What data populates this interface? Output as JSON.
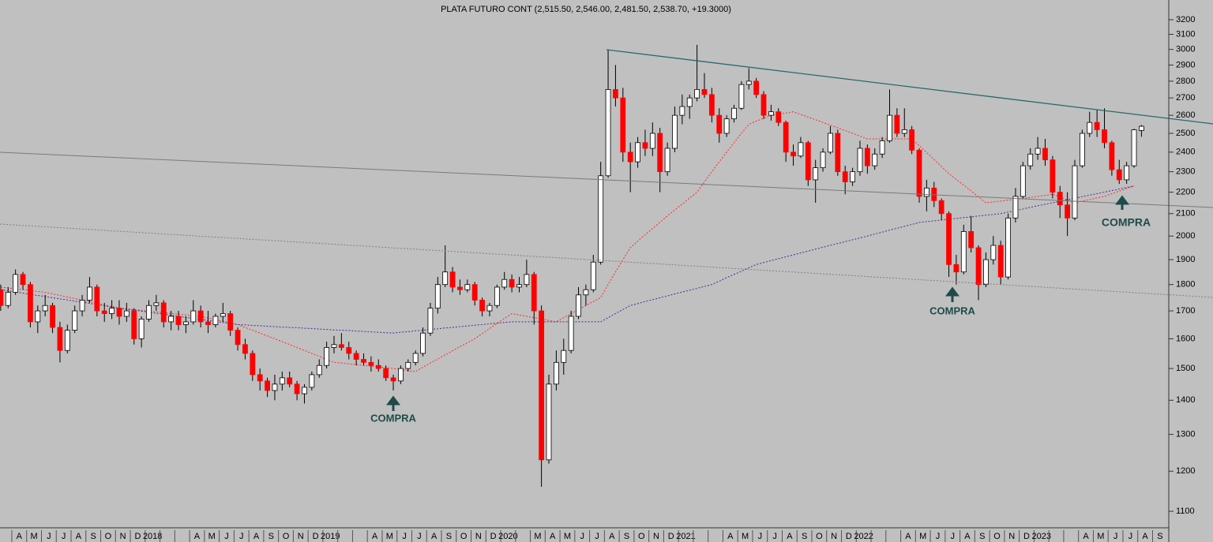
{
  "chart_data": {
    "type": "candlestick",
    "title": "PLATA FUTURO CONT (2,515.50, 2,546.00, 2,481.50, 2,538.70, +19.3000)",
    "categories": [
      null,
      null,
      "A",
      null,
      "M",
      null,
      "J",
      null,
      "J",
      null,
      "A",
      null,
      "S",
      null,
      "O",
      null,
      "N",
      null,
      "D",
      null,
      "2018",
      null,
      null,
      null,
      null,
      null,
      "A",
      null,
      "M",
      null,
      "J",
      null,
      "J",
      null,
      "A",
      null,
      "S",
      null,
      "O",
      null,
      "N",
      null,
      "D",
      null,
      "2019",
      null,
      null,
      null,
      null,
      null,
      "A",
      null,
      "M",
      null,
      "J",
      null,
      "J",
      null,
      "A",
      null,
      "S",
      null,
      "O",
      null,
      "N",
      null,
      "D",
      null,
      "2020",
      null,
      null,
      null,
      "M",
      null,
      "A",
      null,
      "M",
      null,
      "J",
      null,
      "J",
      null,
      "A",
      null,
      "S",
      null,
      "O",
      null,
      "N",
      null,
      "D",
      null,
      "2021",
      null,
      null,
      null,
      null,
      null,
      "A",
      null,
      "M",
      null,
      "J",
      null,
      "J",
      null,
      "A",
      null,
      "S",
      null,
      "O",
      null,
      "N",
      null,
      "D",
      null,
      "2022",
      null,
      null,
      null,
      null,
      null,
      "A",
      null,
      "M",
      null,
      "J",
      null,
      "J",
      null,
      "A",
      null,
      "S",
      null,
      "O",
      null,
      "N",
      null,
      "D",
      null,
      "2023",
      null,
      null,
      null,
      null,
      null,
      "A",
      null,
      "M",
      null,
      "J",
      null,
      "J",
      null,
      "A",
      null,
      "S",
      null
    ],
    "candles": [
      [
        1780,
        1800,
        1700,
        1720
      ],
      [
        1720,
        1790,
        1710,
        1770
      ],
      [
        1770,
        1860,
        1760,
        1840
      ],
      [
        1840,
        1850,
        1780,
        1800
      ],
      [
        1800,
        1810,
        1640,
        1660
      ],
      [
        1660,
        1720,
        1620,
        1700
      ],
      [
        1700,
        1760,
        1680,
        1720
      ],
      [
        1720,
        1730,
        1620,
        1640
      ],
      [
        1640,
        1660,
        1520,
        1560
      ],
      [
        1560,
        1650,
        1550,
        1630
      ],
      [
        1630,
        1720,
        1620,
        1700
      ],
      [
        1700,
        1760,
        1680,
        1740
      ],
      [
        1740,
        1830,
        1730,
        1790
      ],
      [
        1790,
        1800,
        1680,
        1700
      ],
      [
        1700,
        1730,
        1660,
        1690
      ],
      [
        1690,
        1740,
        1670,
        1710
      ],
      [
        1710,
        1740,
        1650,
        1680
      ],
      [
        1680,
        1730,
        1660,
        1700
      ],
      [
        1700,
        1710,
        1580,
        1600
      ],
      [
        1600,
        1680,
        1570,
        1670
      ],
      [
        1670,
        1740,
        1660,
        1720
      ],
      [
        1720,
        1760,
        1700,
        1730
      ],
      [
        1730,
        1740,
        1640,
        1660
      ],
      [
        1660,
        1700,
        1630,
        1680
      ],
      [
        1680,
        1700,
        1630,
        1650
      ],
      [
        1650,
        1680,
        1620,
        1660
      ],
      [
        1660,
        1740,
        1650,
        1700
      ],
      [
        1700,
        1720,
        1640,
        1660
      ],
      [
        1660,
        1700,
        1620,
        1650
      ],
      [
        1650,
        1690,
        1640,
        1680
      ],
      [
        1680,
        1730,
        1660,
        1690
      ],
      [
        1690,
        1700,
        1610,
        1630
      ],
      [
        1630,
        1640,
        1560,
        1580
      ],
      [
        1580,
        1600,
        1530,
        1550
      ],
      [
        1550,
        1560,
        1460,
        1480
      ],
      [
        1480,
        1500,
        1430,
        1460
      ],
      [
        1460,
        1470,
        1410,
        1430
      ],
      [
        1430,
        1480,
        1400,
        1450
      ],
      [
        1450,
        1490,
        1430,
        1470
      ],
      [
        1470,
        1490,
        1440,
        1450
      ],
      [
        1450,
        1460,
        1400,
        1420
      ],
      [
        1420,
        1450,
        1390,
        1440
      ],
      [
        1440,
        1490,
        1430,
        1480
      ],
      [
        1480,
        1530,
        1470,
        1510
      ],
      [
        1510,
        1590,
        1500,
        1570
      ],
      [
        1570,
        1610,
        1550,
        1580
      ],
      [
        1580,
        1620,
        1560,
        1570
      ],
      [
        1570,
        1590,
        1530,
        1550
      ],
      [
        1550,
        1560,
        1510,
        1530
      ],
      [
        1530,
        1550,
        1510,
        1520
      ],
      [
        1520,
        1540,
        1490,
        1510
      ],
      [
        1510,
        1530,
        1490,
        1500
      ],
      [
        1500,
        1510,
        1460,
        1470
      ],
      [
        1470,
        1480,
        1430,
        1460
      ],
      [
        1460,
        1510,
        1450,
        1500
      ],
      [
        1500,
        1530,
        1490,
        1520
      ],
      [
        1520,
        1560,
        1510,
        1550
      ],
      [
        1550,
        1640,
        1540,
        1620
      ],
      [
        1620,
        1730,
        1610,
        1710
      ],
      [
        1710,
        1830,
        1690,
        1800
      ],
      [
        1800,
        1960,
        1790,
        1850
      ],
      [
        1850,
        1870,
        1770,
        1790
      ],
      [
        1790,
        1820,
        1760,
        1780
      ],
      [
        1780,
        1820,
        1770,
        1800
      ],
      [
        1800,
        1810,
        1720,
        1740
      ],
      [
        1740,
        1750,
        1680,
        1700
      ],
      [
        1700,
        1730,
        1680,
        1720
      ],
      [
        1720,
        1800,
        1710,
        1790
      ],
      [
        1790,
        1850,
        1780,
        1820
      ],
      [
        1820,
        1840,
        1770,
        1790
      ],
      [
        1790,
        1830,
        1770,
        1800
      ],
      [
        1800,
        1900,
        1790,
        1840
      ],
      [
        1840,
        1850,
        1650,
        1700
      ],
      [
        1700,
        1720,
        1160,
        1230
      ],
      [
        1230,
        1480,
        1220,
        1450
      ],
      [
        1450,
        1560,
        1430,
        1520
      ],
      [
        1520,
        1600,
        1480,
        1560
      ],
      [
        1560,
        1700,
        1550,
        1680
      ],
      [
        1680,
        1790,
        1670,
        1760
      ],
      [
        1760,
        1800,
        1720,
        1780
      ],
      [
        1780,
        1920,
        1770,
        1890
      ],
      [
        1890,
        2350,
        1880,
        2280
      ],
      [
        2280,
        3000,
        2270,
        2750
      ],
      [
        2750,
        2900,
        2650,
        2700
      ],
      [
        2700,
        2760,
        2350,
        2400
      ],
      [
        2400,
        2450,
        2200,
        2350
      ],
      [
        2350,
        2480,
        2320,
        2450
      ],
      [
        2450,
        2520,
        2380,
        2420
      ],
      [
        2420,
        2560,
        2380,
        2500
      ],
      [
        2500,
        2530,
        2200,
        2300
      ],
      [
        2300,
        2450,
        2280,
        2420
      ],
      [
        2420,
        2650,
        2400,
        2600
      ],
      [
        2600,
        2720,
        2550,
        2650
      ],
      [
        2650,
        2720,
        2580,
        2700
      ],
      [
        2700,
        3030,
        2680,
        2750
      ],
      [
        2750,
        2850,
        2700,
        2720
      ],
      [
        2720,
        2760,
        2560,
        2600
      ],
      [
        2600,
        2640,
        2450,
        2500
      ],
      [
        2500,
        2600,
        2480,
        2580
      ],
      [
        2580,
        2660,
        2560,
        2640
      ],
      [
        2640,
        2800,
        2630,
        2780
      ],
      [
        2780,
        2880,
        2750,
        2800
      ],
      [
        2800,
        2820,
        2700,
        2720
      ],
      [
        2720,
        2740,
        2580,
        2600
      ],
      [
        2600,
        2660,
        2570,
        2620
      ],
      [
        2620,
        2640,
        2540,
        2560
      ],
      [
        2560,
        2570,
        2350,
        2400
      ],
      [
        2400,
        2440,
        2330,
        2380
      ],
      [
        2380,
        2480,
        2370,
        2450
      ],
      [
        2450,
        2460,
        2230,
        2260
      ],
      [
        2260,
        2360,
        2150,
        2320
      ],
      [
        2320,
        2420,
        2300,
        2400
      ],
      [
        2400,
        2540,
        2390,
        2500
      ],
      [
        2500,
        2520,
        2280,
        2300
      ],
      [
        2300,
        2330,
        2190,
        2250
      ],
      [
        2250,
        2320,
        2230,
        2300
      ],
      [
        2300,
        2460,
        2280,
        2420
      ],
      [
        2420,
        2440,
        2290,
        2330
      ],
      [
        2330,
        2420,
        2310,
        2390
      ],
      [
        2390,
        2480,
        2370,
        2460
      ],
      [
        2460,
        2750,
        2450,
        2600
      ],
      [
        2600,
        2640,
        2480,
        2500
      ],
      [
        2500,
        2640,
        2480,
        2520
      ],
      [
        2520,
        2540,
        2390,
        2410
      ],
      [
        2410,
        2420,
        2150,
        2180
      ],
      [
        2180,
        2260,
        2110,
        2220
      ],
      [
        2220,
        2250,
        2130,
        2160
      ],
      [
        2160,
        2170,
        2070,
        2100
      ],
      [
        2100,
        2110,
        1830,
        1880
      ],
      [
        1880,
        1920,
        1800,
        1850
      ],
      [
        1850,
        2050,
        1840,
        2020
      ],
      [
        2020,
        2090,
        1930,
        1950
      ],
      [
        1950,
        1960,
        1740,
        1800
      ],
      [
        1800,
        1930,
        1790,
        1900
      ],
      [
        1900,
        2000,
        1880,
        1960
      ],
      [
        1960,
        1980,
        1800,
        1830
      ],
      [
        1830,
        2100,
        1820,
        2080
      ],
      [
        2080,
        2220,
        2060,
        2180
      ],
      [
        2180,
        2350,
        2170,
        2330
      ],
      [
        2330,
        2420,
        2310,
        2390
      ],
      [
        2390,
        2480,
        2360,
        2420
      ],
      [
        2420,
        2470,
        2330,
        2360
      ],
      [
        2360,
        2380,
        2170,
        2200
      ],
      [
        2200,
        2230,
        2080,
        2140
      ],
      [
        2140,
        2200,
        2000,
        2080
      ],
      [
        2080,
        2360,
        2070,
        2330
      ],
      [
        2330,
        2520,
        2320,
        2500
      ],
      [
        2500,
        2620,
        2480,
        2560
      ],
      [
        2560,
        2630,
        2480,
        2520
      ],
      [
        2520,
        2640,
        2420,
        2450
      ],
      [
        2450,
        2460,
        2280,
        2310
      ],
      [
        2310,
        2360,
        2240,
        2260
      ],
      [
        2260,
        2350,
        2240,
        2330
      ],
      [
        2330,
        2525,
        2320,
        2519.4
      ],
      [
        2515.5,
        2546,
        2481.5,
        2538.7
      ],
      null,
      null,
      null,
      null
    ],
    "up_color": "#ffffff",
    "down_color": "#ff0000",
    "overlays": [
      {
        "color": "#ff2a2a",
        "values": [
          1790,
          1787,
          1783,
          1780,
          1777,
          1773,
          1770,
          1764,
          1758,
          1752,
          1746,
          1740,
          1734,
          1728,
          1722,
          1716,
          1710,
          1707,
          1705,
          1702,
          1699,
          1696,
          1694,
          1691,
          1688,
          1685,
          1683,
          1680,
          1674,
          1668,
          1662,
          1656,
          1650,
          1640,
          1630,
          1620,
          1610,
          1600,
          1590,
          1580,
          1570,
          1560,
          1550,
          1540,
          1530,
          1520,
          1518,
          1515,
          1513,
          1510,
          1508,
          1505,
          1503,
          1500,
          1497,
          1493,
          1490,
          1504,
          1518,
          1531,
          1545,
          1559,
          1573,
          1586,
          1600,
          1618,
          1636,
          1654,
          1672,
          1690,
          1685,
          1680,
          1675,
          1670,
          1665,
          1660,
          1675,
          1690,
          1705,
          1720,
          1735,
          1750,
          1800,
          1850,
          1900,
          1950,
          1978,
          2006,
          2033,
          2061,
          2089,
          2117,
          2144,
          2172,
          2200,
          2250,
          2300,
          2350,
          2400,
          2450,
          2500,
          2550,
          2567,
          2583,
          2600,
          2607,
          2613,
          2620,
          2605,
          2590,
          2575,
          2560,
          2545,
          2530,
          2515,
          2500,
          2485,
          2470,
          2470,
          2470,
          2470,
          2470,
          2470,
          2470,
          2434,
          2398,
          2362,
          2326,
          2290,
          2262,
          2234,
          2206,
          2178,
          2150,
          2154,
          2158,
          2162,
          2166,
          2170,
          2175,
          2180,
          2185,
          2190,
          2177,
          2163,
          2150,
          2158,
          2165,
          2173,
          2180,
          2193,
          2205,
          2218,
          2230,
          null,
          null,
          null,
          null
        ]
      },
      {
        "color": "#4a2a9a",
        "values": [
          1780,
          1776,
          1771,
          1767,
          1762,
          1758,
          1754,
          1749,
          1745,
          1741,
          1736,
          1732,
          1728,
          1723,
          1719,
          1714,
          1710,
          1706,
          1703,
          1699,
          1695,
          1691,
          1688,
          1684,
          1680,
          1676,
          1673,
          1669,
          1665,
          1661,
          1658,
          1654,
          1650,
          1649,
          1647,
          1646,
          1644,
          1643,
          1641,
          1640,
          1639,
          1637,
          1636,
          1634,
          1633,
          1631,
          1630,
          1629,
          1627,
          1626,
          1624,
          1623,
          1621,
          1620,
          1623,
          1625,
          1628,
          1630,
          1633,
          1635,
          1638,
          1640,
          1643,
          1645,
          1648,
          1650,
          1653,
          1655,
          1658,
          1660,
          1660,
          1660,
          1660,
          1660,
          1660,
          1660,
          1660,
          1660,
          1660,
          1660,
          1660,
          1660,
          1675,
          1690,
          1705,
          1720,
          1727,
          1735,
          1742,
          1749,
          1756,
          1764,
          1771,
          1778,
          1785,
          1793,
          1800,
          1813,
          1827,
          1840,
          1853,
          1867,
          1880,
          1888,
          1896,
          1904,
          1912,
          1920,
          1928,
          1936,
          1944,
          1952,
          1960,
          1968,
          1976,
          1984,
          1992,
          2000,
          2009,
          2017,
          2026,
          2034,
          2043,
          2051,
          2060,
          2064,
          2067,
          2071,
          2075,
          2078,
          2082,
          2085,
          2089,
          2093,
          2096,
          2100,
          2107,
          2114,
          2121,
          2129,
          2136,
          2143,
          2150,
          2157,
          2164,
          2171,
          2179,
          2186,
          2193,
          2200,
          2208,
          2215,
          2223,
          2230,
          null,
          null,
          null,
          null
        ]
      }
    ],
    "annotations": [
      "COMPRA",
      "COMPRA",
      "COMPRA"
    ],
    "log_scale": true,
    "ylim": [
      1063,
      3340
    ],
    "yticks": [
      1100,
      1200,
      1300,
      1400,
      1500,
      1600,
      1700,
      1800,
      1900,
      2000,
      2100,
      2200,
      2300,
      2400,
      2500,
      2600,
      2700,
      2800,
      2900,
      3000,
      3100,
      3200
    ]
  }
}
